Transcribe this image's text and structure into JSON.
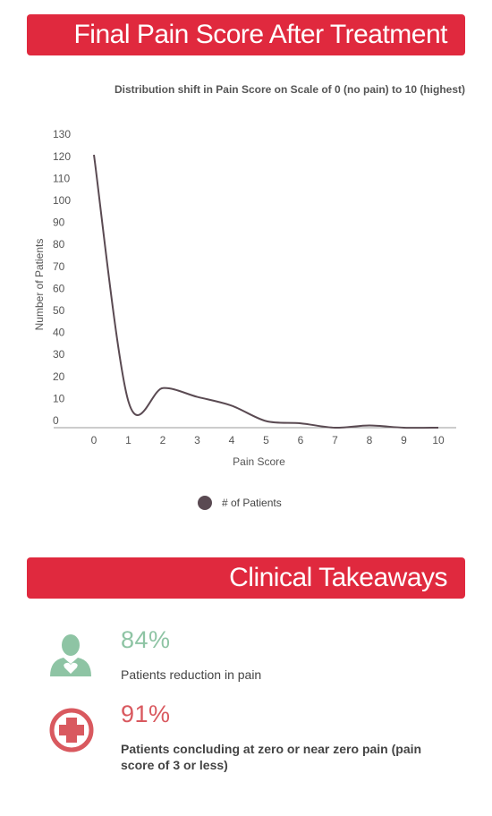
{
  "header": {
    "title": "Final Pain Score After Treatment",
    "subtitle": "Distribution shift in Pain Score on Scale of 0 (no pain) to 10 (highest)"
  },
  "chart_data": {
    "type": "line",
    "x": [
      0,
      1,
      2,
      3,
      4,
      5,
      6,
      7,
      8,
      9,
      10
    ],
    "series": [
      {
        "name": "# of Patients",
        "values": [
          124,
          12,
          18,
          14,
          10,
          3,
          2,
          0,
          1,
          0,
          0
        ]
      }
    ],
    "xlabel": "Pain Score",
    "ylabel": "Number of Patients",
    "xticks": [
      "0",
      "1",
      "2",
      "3",
      "4",
      "5",
      "6",
      "7",
      "8",
      "9",
      "10"
    ],
    "yticks": [
      "130",
      "120",
      "110",
      "100",
      "90",
      "80",
      "70",
      "60",
      "50",
      "40",
      "30",
      "20",
      "10",
      "0"
    ],
    "ylim": [
      0,
      130
    ],
    "grid": false,
    "legend_position": "bottom-center",
    "line_color": "#5a4a52"
  },
  "section2": {
    "title": "Clinical Takeaways"
  },
  "takeaways": [
    {
      "icon": "person-heart-icon",
      "value": "84%",
      "text": "Patients reduction in pain",
      "color": "#8ec4a4",
      "bold": false
    },
    {
      "icon": "medical-cross-icon",
      "value": "91%",
      "text": "Patients concluding at zero or near zero pain (pain score of 3 or less)",
      "color": "#d9595f",
      "bold": true
    }
  ],
  "colors": {
    "banner": "#e0293e",
    "axis": "#999999"
  }
}
